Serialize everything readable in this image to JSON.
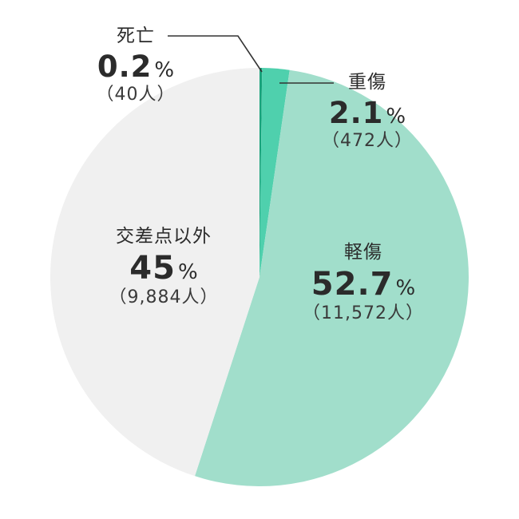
{
  "chart_data": {
    "type": "pie",
    "start_angle_deg": 0,
    "direction": "clockwise",
    "slices": [
      {
        "label": "死亡",
        "percent": 0.2,
        "percent_text": "0.2",
        "unit": "%",
        "count_text": "（40人）",
        "color": "#1aa37c"
      },
      {
        "label": "重傷",
        "percent": 2.1,
        "percent_text": "2.1",
        "unit": "%",
        "count_text": "（472人）",
        "color": "#4fd0ad"
      },
      {
        "label": "軽傷",
        "percent": 52.7,
        "percent_text": "52.7",
        "unit": "%",
        "count_text": "（11,572人）",
        "color": "#a1decb"
      },
      {
        "label": "交差点以外",
        "percent": 45,
        "percent_text": "45",
        "unit": "%",
        "count_text": "（9,884人）",
        "color": "#f0f0f0"
      }
    ]
  }
}
